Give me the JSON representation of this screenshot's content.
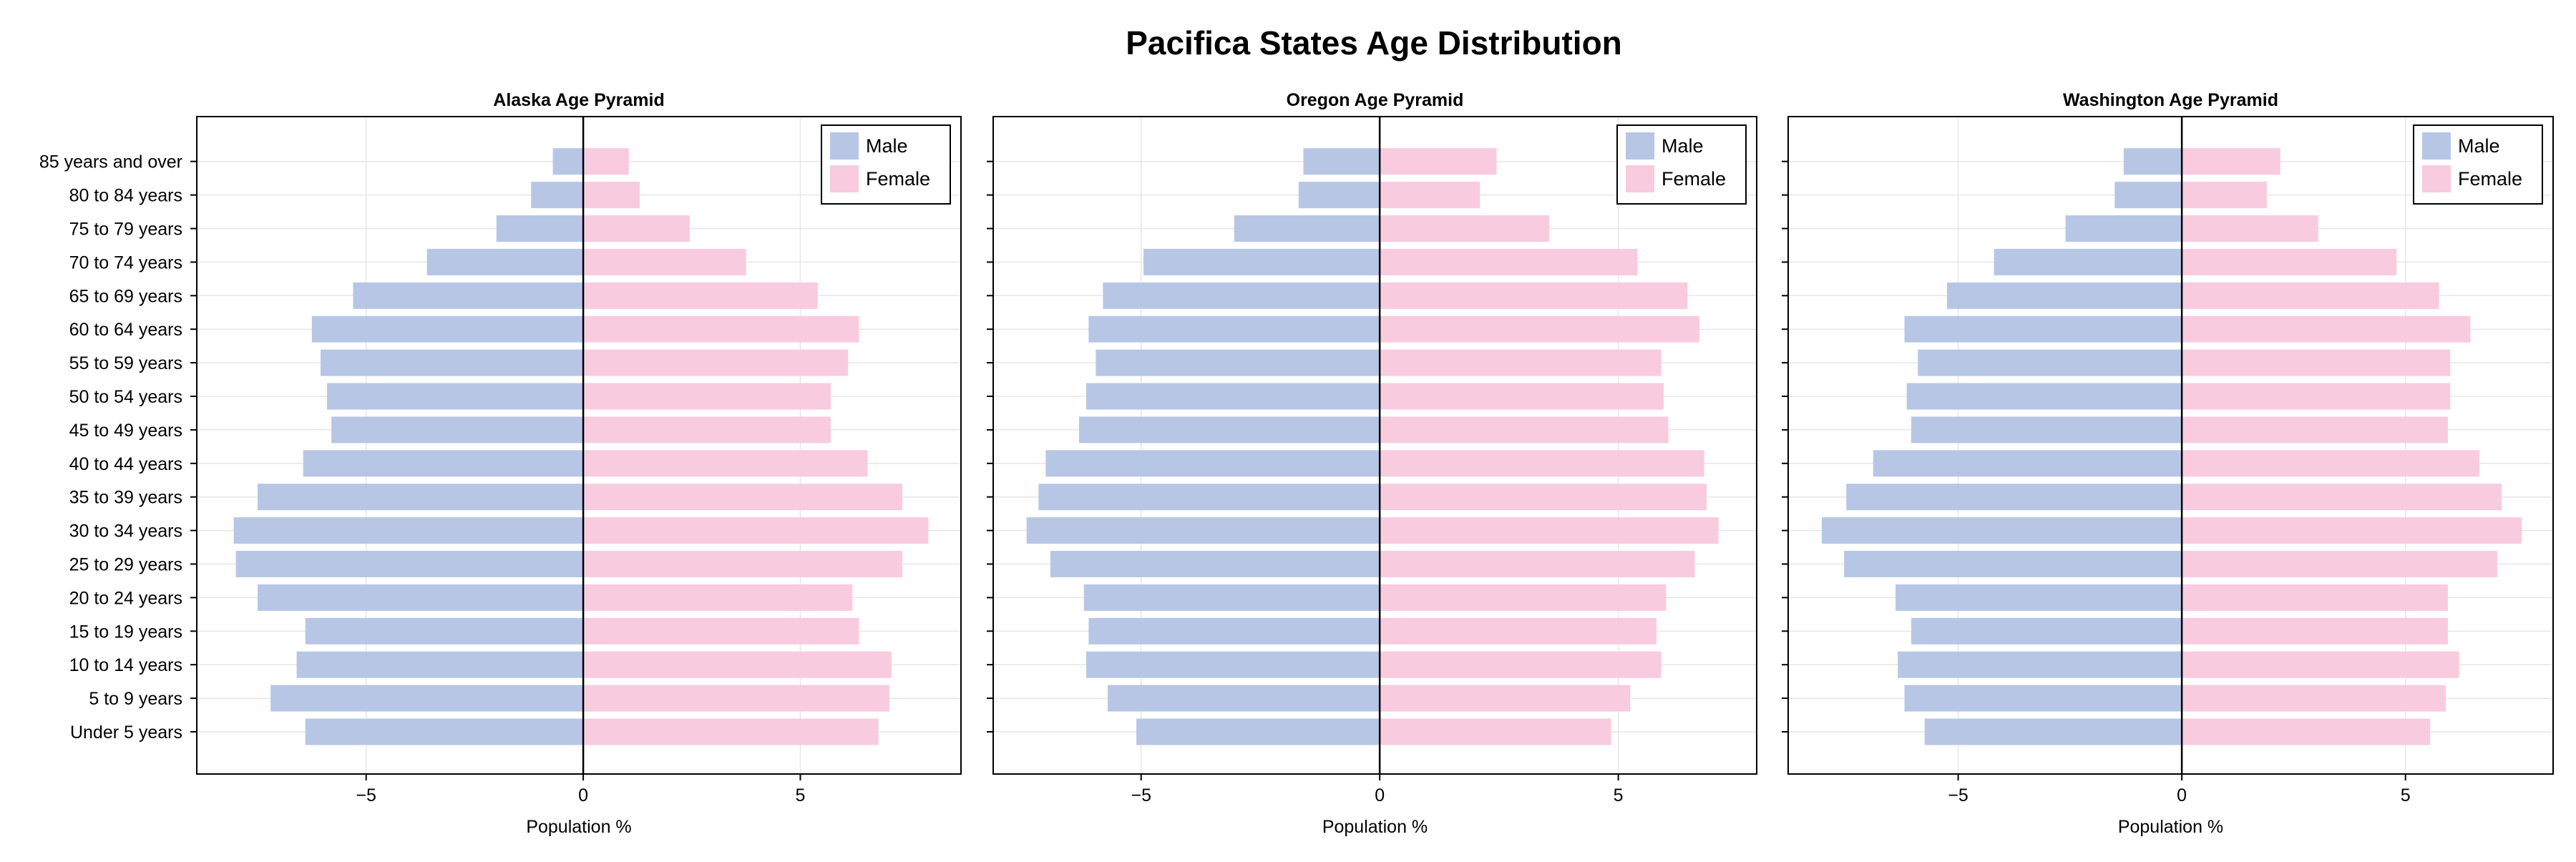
{
  "title": "Pacifica States Age Distribution",
  "colors": {
    "male": "#b8c6e6",
    "female": "#f9cbde",
    "grid": "#e6e6e6",
    "axis": "#000000",
    "background": "#ffffff"
  },
  "chart_data": [
    {
      "type": "bar",
      "orientation": "horizontal",
      "title": "Alaska Age Pyramid",
      "xlabel": "Population %",
      "ylabel": "",
      "xlim": [
        -8.9,
        8.7
      ],
      "xticks": [
        -5,
        0,
        5
      ],
      "xtick_labels": [
        "−5",
        "0",
        "5"
      ],
      "grid": true,
      "legend_position": "top-right",
      "categories": [
        "Under 5 years",
        "5 to 9 years",
        "10 to 14 years",
        "15 to 19 years",
        "20 to 24 years",
        "25 to 29 years",
        "30 to 34 years",
        "35 to 39 years",
        "40 to 44 years",
        "45 to 49 years",
        "50 to 54 years",
        "55 to 59 years",
        "60 to 64 years",
        "65 to 69 years",
        "70 to 74 years",
        "75 to 79 years",
        "80 to 84 years",
        "85 years and over"
      ],
      "series": [
        {
          "name": "Male",
          "values": [
            -6.4,
            -7.2,
            -6.6,
            -6.4,
            -7.5,
            -8.0,
            -8.05,
            -7.5,
            -6.45,
            -5.8,
            -5.9,
            -6.05,
            -6.25,
            -5.3,
            -3.6,
            -2.0,
            -1.2,
            -0.7
          ]
        },
        {
          "name": "Female",
          "values": [
            6.8,
            7.05,
            7.1,
            6.35,
            6.2,
            7.35,
            7.95,
            7.35,
            6.55,
            5.7,
            5.7,
            6.1,
            6.35,
            5.4,
            3.75,
            2.45,
            1.3,
            1.05
          ]
        }
      ]
    },
    {
      "type": "bar",
      "orientation": "horizontal",
      "title": "Oregon Age Pyramid",
      "xlabel": "Population %",
      "ylabel": "",
      "xlim": [
        -8.1,
        7.9
      ],
      "xticks": [
        -5,
        0,
        5
      ],
      "xtick_labels": [
        "−5",
        "0",
        "5"
      ],
      "grid": true,
      "legend_position": "top-right",
      "categories": [
        "Under 5 years",
        "5 to 9 years",
        "10 to 14 years",
        "15 to 19 years",
        "20 to 24 years",
        "25 to 29 years",
        "30 to 34 years",
        "35 to 39 years",
        "40 to 44 years",
        "45 to 49 years",
        "50 to 54 years",
        "55 to 59 years",
        "60 to 64 years",
        "65 to 69 years",
        "70 to 74 years",
        "75 to 79 years",
        "80 to 84 years",
        "85 years and over"
      ],
      "series": [
        {
          "name": "Male",
          "values": [
            -5.1,
            -5.7,
            -6.15,
            -6.1,
            -6.2,
            -6.9,
            -7.4,
            -7.15,
            -7.0,
            -6.3,
            -6.15,
            -5.95,
            -6.1,
            -5.8,
            -4.95,
            -3.05,
            -1.7,
            -1.6
          ]
        },
        {
          "name": "Female",
          "values": [
            4.85,
            5.25,
            5.9,
            5.8,
            6.0,
            6.6,
            7.1,
            6.85,
            6.8,
            6.05,
            5.95,
            5.9,
            6.7,
            6.45,
            5.4,
            3.55,
            2.1,
            2.45
          ]
        }
      ]
    },
    {
      "type": "bar",
      "orientation": "horizontal",
      "title": "Washington Age Pyramid",
      "xlabel": "Population %",
      "ylabel": "",
      "xlim": [
        -8.8,
        8.3
      ],
      "xticks": [
        -5,
        0,
        5
      ],
      "xtick_labels": [
        "−5",
        "0",
        "5"
      ],
      "grid": true,
      "legend_position": "top-right",
      "categories": [
        "Under 5 years",
        "5 to 9 years",
        "10 to 14 years",
        "15 to 19 years",
        "20 to 24 years",
        "25 to 29 years",
        "30 to 34 years",
        "35 to 39 years",
        "40 to 44 years",
        "45 to 49 years",
        "50 to 54 years",
        "55 to 59 years",
        "60 to 64 years",
        "65 to 69 years",
        "70 to 74 years",
        "75 to 79 years",
        "80 to 84 years",
        "85 years and over"
      ],
      "series": [
        {
          "name": "Male",
          "values": [
            -5.75,
            -6.2,
            -6.35,
            -6.05,
            -6.4,
            -7.55,
            -8.05,
            -7.5,
            -6.9,
            -6.05,
            -6.15,
            -5.9,
            -6.2,
            -5.25,
            -4.2,
            -2.6,
            -1.5,
            -1.3
          ]
        },
        {
          "name": "Female",
          "values": [
            5.55,
            5.9,
            6.2,
            5.95,
            5.95,
            7.05,
            7.6,
            7.15,
            6.65,
            5.95,
            6.0,
            6.0,
            6.45,
            5.75,
            4.8,
            3.05,
            1.9,
            2.2
          ]
        }
      ]
    }
  ]
}
